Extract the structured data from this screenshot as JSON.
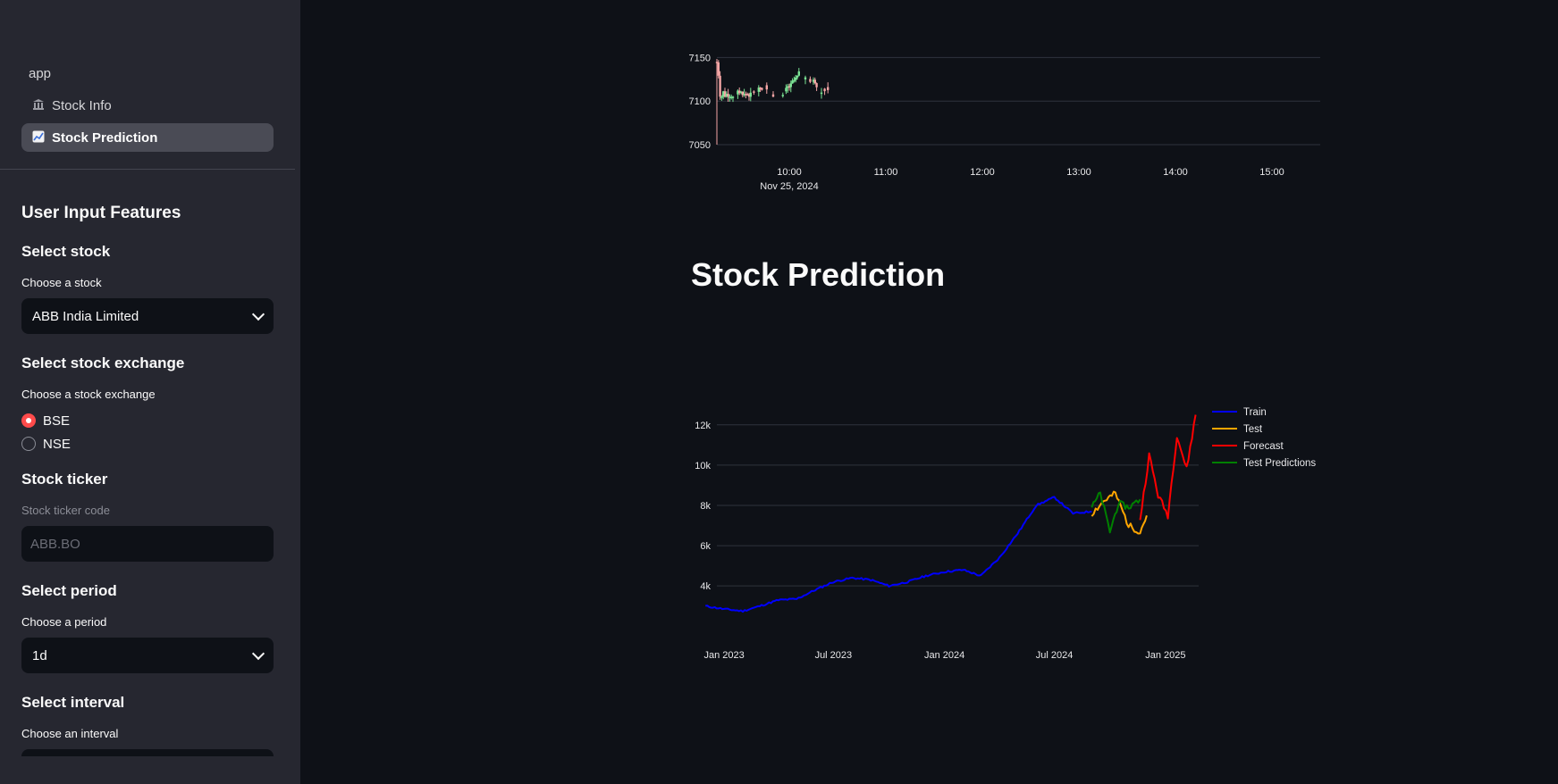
{
  "sidebar": {
    "nav": [
      {
        "label": "app",
        "icon": ""
      },
      {
        "label": "Stock Info",
        "icon": "bank-icon"
      },
      {
        "label": "Stock Prediction",
        "icon": "chart-increasing-icon",
        "active": true
      }
    ],
    "title": "User Input Features",
    "stock": {
      "heading": "Select stock",
      "label": "Choose a stock",
      "value": "ABB India Limited"
    },
    "exchange": {
      "heading": "Select stock exchange",
      "label": "Choose a stock exchange",
      "options": [
        "BSE",
        "NSE"
      ],
      "selected": "BSE"
    },
    "ticker": {
      "heading": "Stock ticker",
      "label": "Stock ticker code",
      "value": "ABB.BO"
    },
    "period": {
      "heading": "Select period",
      "label": "Choose a period",
      "value": "1d"
    },
    "interval": {
      "heading": "Select interval",
      "label": "Choose an interval"
    }
  },
  "main": {
    "prediction_heading": "Stock Prediction"
  },
  "colors": {
    "accent": "#ff4b4b",
    "train": "#0000ff",
    "test": "#ffa500",
    "forecast": "#ff0000",
    "test_predictions": "#008000",
    "candle_up": "#7be495",
    "candle_down": "#f4a5a5"
  },
  "chart_data": [
    {
      "type": "candlestick",
      "title": "",
      "x_ticks": [
        "10:00",
        "11:00",
        "12:00",
        "13:00",
        "14:00",
        "15:00"
      ],
      "x_tick_sublabel": "Nov 25, 2024",
      "y_ticks": [
        7050,
        7100,
        7150
      ],
      "ylim": [
        7050,
        7175
      ],
      "grid": true,
      "series_summary": "one-minute candles between 09:15 and 10:25, prices in the 7050–7175 range"
    },
    {
      "type": "line",
      "title": "",
      "x_ticks": [
        "Jan 2023",
        "Jul 2023",
        "Jan 2024",
        "Jul 2024",
        "Jan 2025"
      ],
      "y_ticks": [
        "4k",
        "6k",
        "8k",
        "10k",
        "12k"
      ],
      "ylim": [
        2500,
        12700
      ],
      "grid": true,
      "legend": "right",
      "series": [
        {
          "name": "Train",
          "x": [
            "2022-12-01",
            "2023-01-01",
            "2023-02-01",
            "2023-03-01",
            "2023-04-01",
            "2023-05-01",
            "2023-06-01",
            "2023-07-01",
            "2023-08-01",
            "2023-09-01",
            "2023-10-01",
            "2023-11-01",
            "2023-12-01",
            "2024-01-01",
            "2024-02-01",
            "2024-03-01",
            "2024-04-01",
            "2024-05-01",
            "2024-06-01",
            "2024-07-01",
            "2024-08-01",
            "2024-09-01"
          ],
          "y": [
            3000,
            2850,
            2750,
            3000,
            3300,
            3350,
            3800,
            4200,
            4400,
            4300,
            4000,
            4200,
            4500,
            4700,
            4800,
            4500,
            5400,
            6600,
            8000,
            8400,
            7600,
            7700
          ]
        },
        {
          "name": "Test",
          "x": [
            "2024-09-01",
            "2024-09-20",
            "2024-10-10",
            "2024-11-01",
            "2024-11-20",
            "2024-12-01"
          ],
          "y": [
            7600,
            8200,
            8600,
            7000,
            6700,
            7500
          ]
        },
        {
          "name": "Test Predictions",
          "x": [
            "2024-09-01",
            "2024-09-15",
            "2024-10-01",
            "2024-10-15",
            "2024-11-01",
            "2024-11-20"
          ],
          "y": [
            7900,
            8600,
            6700,
            8100,
            7900,
            8300
          ]
        },
        {
          "name": "Forecast",
          "x": [
            "2024-11-20",
            "2024-12-05",
            "2024-12-20",
            "2025-01-05",
            "2025-01-20",
            "2025-02-05",
            "2025-02-20"
          ],
          "y": [
            7300,
            10500,
            8500,
            7500,
            11500,
            9800,
            12500
          ]
        }
      ]
    }
  ]
}
